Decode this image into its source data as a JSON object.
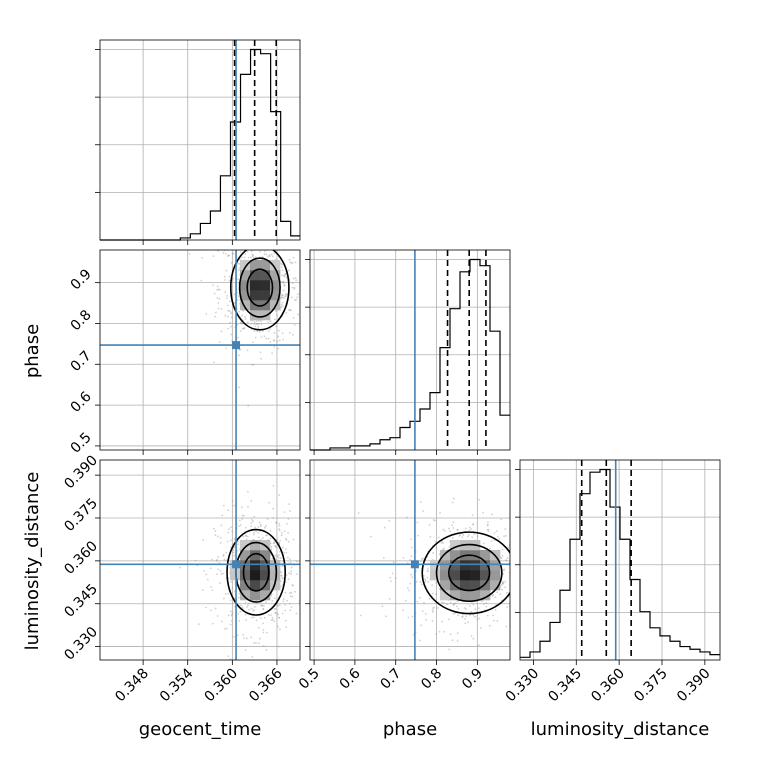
{
  "chart_data": {
    "type": "corner",
    "parameters": [
      "geocent_time",
      "phase",
      "luminosity_distance"
    ],
    "truths": {
      "geocent_time": 0.3605,
      "phase": 0.747,
      "luminosity_distance": 0.3588
    },
    "truth_color": "#4682b4",
    "quantiles_0.16_0.5_0.84": {
      "geocent_time": [
        0.3603,
        0.363,
        0.3659
      ],
      "phase": [
        0.827,
        0.88,
        0.921
      ],
      "luminosity_distance": [
        0.3469,
        0.3555,
        0.3642
      ]
    },
    "ranges": {
      "geocent_time": [
        0.3422,
        0.3691
      ],
      "phase": [
        0.49,
        0.98
      ],
      "luminosity_distance": [
        0.3253,
        0.3953
      ]
    },
    "ticks": {
      "geocent_time": [
        "0.348",
        "0.354",
        "0.360",
        "0.366"
      ],
      "phase": [
        "0.5",
        "0.6",
        "0.7",
        "0.8",
        "0.9"
      ],
      "luminosity_distance": [
        "0.330",
        "0.345",
        "0.360",
        "0.375",
        "0.390"
      ]
    },
    "histograms": {
      "geocent_time": {
        "bin_edges": [
          0.3422,
          0.34355,
          0.3449,
          0.34625,
          0.3476,
          0.34895,
          0.3503,
          0.35165,
          0.353,
          0.35435,
          0.3557,
          0.35705,
          0.3584,
          0.35975,
          0.3611,
          0.36245,
          0.3638,
          0.36515,
          0.3665,
          0.36785,
          0.3691
        ],
        "counts": [
          0,
          0,
          0,
          0,
          0,
          0,
          0,
          0,
          1,
          3,
          8,
          14,
          31,
          57,
          80,
          92,
          90,
          62,
          9,
          2
        ]
      },
      "phase": {
        "bin_edges": [
          0.49,
          0.5145,
          0.539,
          0.5635,
          0.588,
          0.6125,
          0.637,
          0.6615,
          0.686,
          0.7105,
          0.735,
          0.7595,
          0.784,
          0.8085,
          0.833,
          0.8575,
          0.882,
          0.9065,
          0.931,
          0.9555,
          0.98
        ],
        "counts": [
          0,
          0,
          1,
          1,
          2,
          2,
          3,
          5,
          6,
          11,
          14,
          20,
          28,
          50,
          69,
          87,
          93,
          90,
          58,
          17
        ]
      },
      "luminosity_distance": {
        "bin_edges": [
          0.3253,
          0.3288,
          0.3323,
          0.3358,
          0.3393,
          0.3428,
          0.3463,
          0.3498,
          0.3533,
          0.3568,
          0.3603,
          0.3638,
          0.3673,
          0.3708,
          0.3743,
          0.3778,
          0.3813,
          0.3848,
          0.3883,
          0.3918,
          0.3953
        ],
        "counts": [
          1,
          3,
          7,
          14,
          26,
          45,
          62,
          70,
          71,
          57,
          45,
          30,
          18,
          12,
          9,
          7,
          5,
          4,
          3,
          2
        ]
      }
    },
    "densities": [
      {
        "x": "geocent_time",
        "y": "phase",
        "peak": [
          0.3637,
          0.888
        ],
        "sigma": [
          0.0017,
          0.045
        ]
      },
      {
        "x": "geocent_time",
        "y": "luminosity_distance",
        "peak": [
          0.3632,
          0.356
        ],
        "sigma": [
          0.0017,
          0.0065
        ]
      },
      {
        "x": "phase",
        "y": "luminosity_distance",
        "peak": [
          0.88,
          0.3558
        ],
        "sigma": [
          0.05,
          0.0062
        ]
      }
    ],
    "grid": true
  }
}
